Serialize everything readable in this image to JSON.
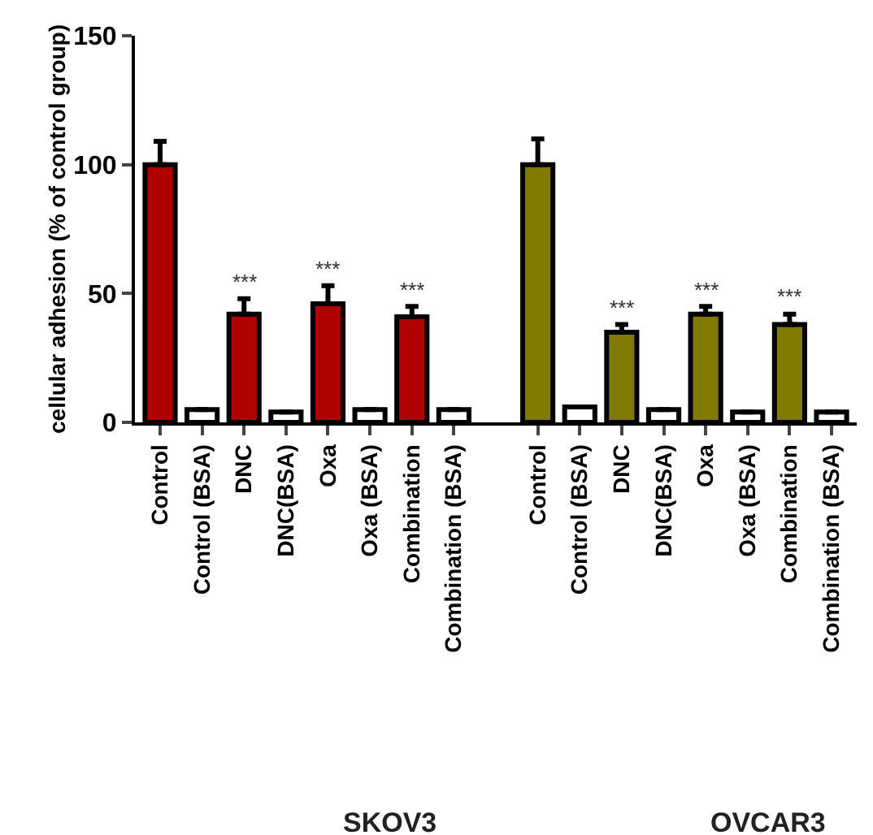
{
  "chart_data": {
    "type": "bar",
    "ylabel": "cellular adhesion (% of control group)",
    "categories": [
      "Control",
      "Control (BSA)",
      "DNC",
      "DNC(BSA)",
      "Oxa",
      "Oxa (BSA)",
      "Combination",
      "Combination (BSA)",
      null,
      "Control",
      "Control (BSA)",
      "DNC",
      "DNC(BSA)",
      "Oxa",
      "Oxa (BSA)",
      "Combination",
      "Combination (BSA)"
    ],
    "values": [
      100,
      5,
      42,
      4,
      46,
      5,
      41,
      5,
      null,
      100,
      6,
      35,
      5,
      42,
      4,
      38,
      4
    ],
    "colors": [
      "#b00000",
      "#ffffff",
      "#b00000",
      "#ffffff",
      "#b00000",
      "#ffffff",
      "#b00000",
      "#ffffff",
      "#ffffff",
      "#807a00",
      "#ffffff",
      "#807a00",
      "#ffffff",
      "#807a00",
      "#ffffff",
      "#807a00",
      "#ffffff"
    ],
    "errors": [
      [
        100,
        109
      ],
      null,
      [
        42,
        48
      ],
      null,
      [
        46,
        53
      ],
      null,
      [
        41,
        45
      ],
      null,
      null,
      [
        100,
        110
      ],
      null,
      [
        35,
        38
      ],
      null,
      [
        42,
        45
      ],
      null,
      [
        38,
        42
      ],
      null
    ],
    "value_labels": [
      null,
      null,
      "***",
      null,
      "***",
      null,
      "***",
      null,
      null,
      null,
      null,
      "***",
      null,
      "***",
      null,
      "***",
      null
    ],
    "annotations": [
      "SKOV3",
      "OVCAR3"
    ],
    "ylim": [
      0,
      150
    ],
    "yticks": [
      0,
      50,
      100,
      150
    ],
    "grid": false
  }
}
